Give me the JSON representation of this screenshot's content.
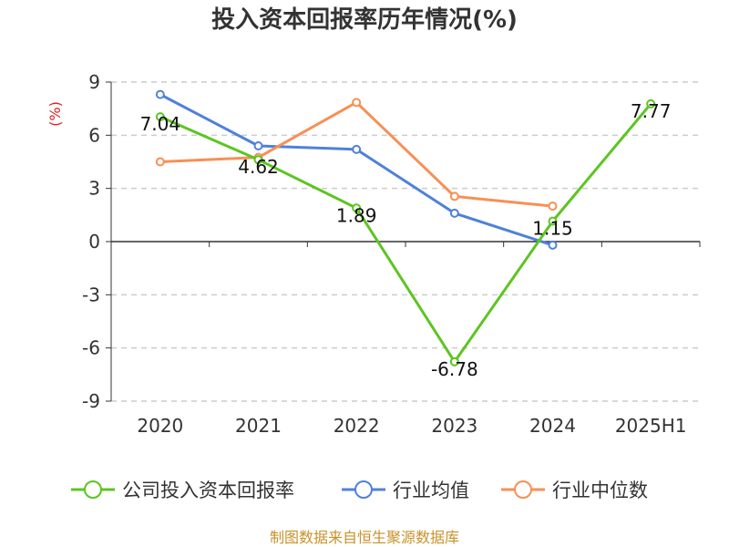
{
  "chart_data": {
    "type": "line",
    "title": "投入资本回报率历年情况(%)",
    "unit_label": "(%)",
    "categories": [
      "2020",
      "2021",
      "2022",
      "2023",
      "2024",
      "2025H1"
    ],
    "ylim": [
      -9,
      9
    ],
    "yticks": [
      9,
      6,
      3,
      0,
      -3,
      -6,
      -9
    ],
    "grid": true,
    "legend_position": "bottom",
    "series": [
      {
        "name": "公司投入资本回报率",
        "color": "#5cc521",
        "values": [
          7.04,
          4.62,
          1.89,
          -6.78,
          1.15,
          7.77
        ],
        "labels": [
          "7.04",
          "4.62",
          "1.89",
          "-6.78",
          "1.15",
          "7.77"
        ]
      },
      {
        "name": "行业均值",
        "color": "#4f81db",
        "values": [
          8.3,
          5.4,
          5.2,
          1.6,
          -0.2,
          null
        ]
      },
      {
        "name": "行业中位数",
        "color": "#f79055",
        "values": [
          4.5,
          4.75,
          7.85,
          2.55,
          2.0,
          null
        ]
      }
    ],
    "source": "制图数据来自恒生聚源数据库"
  }
}
